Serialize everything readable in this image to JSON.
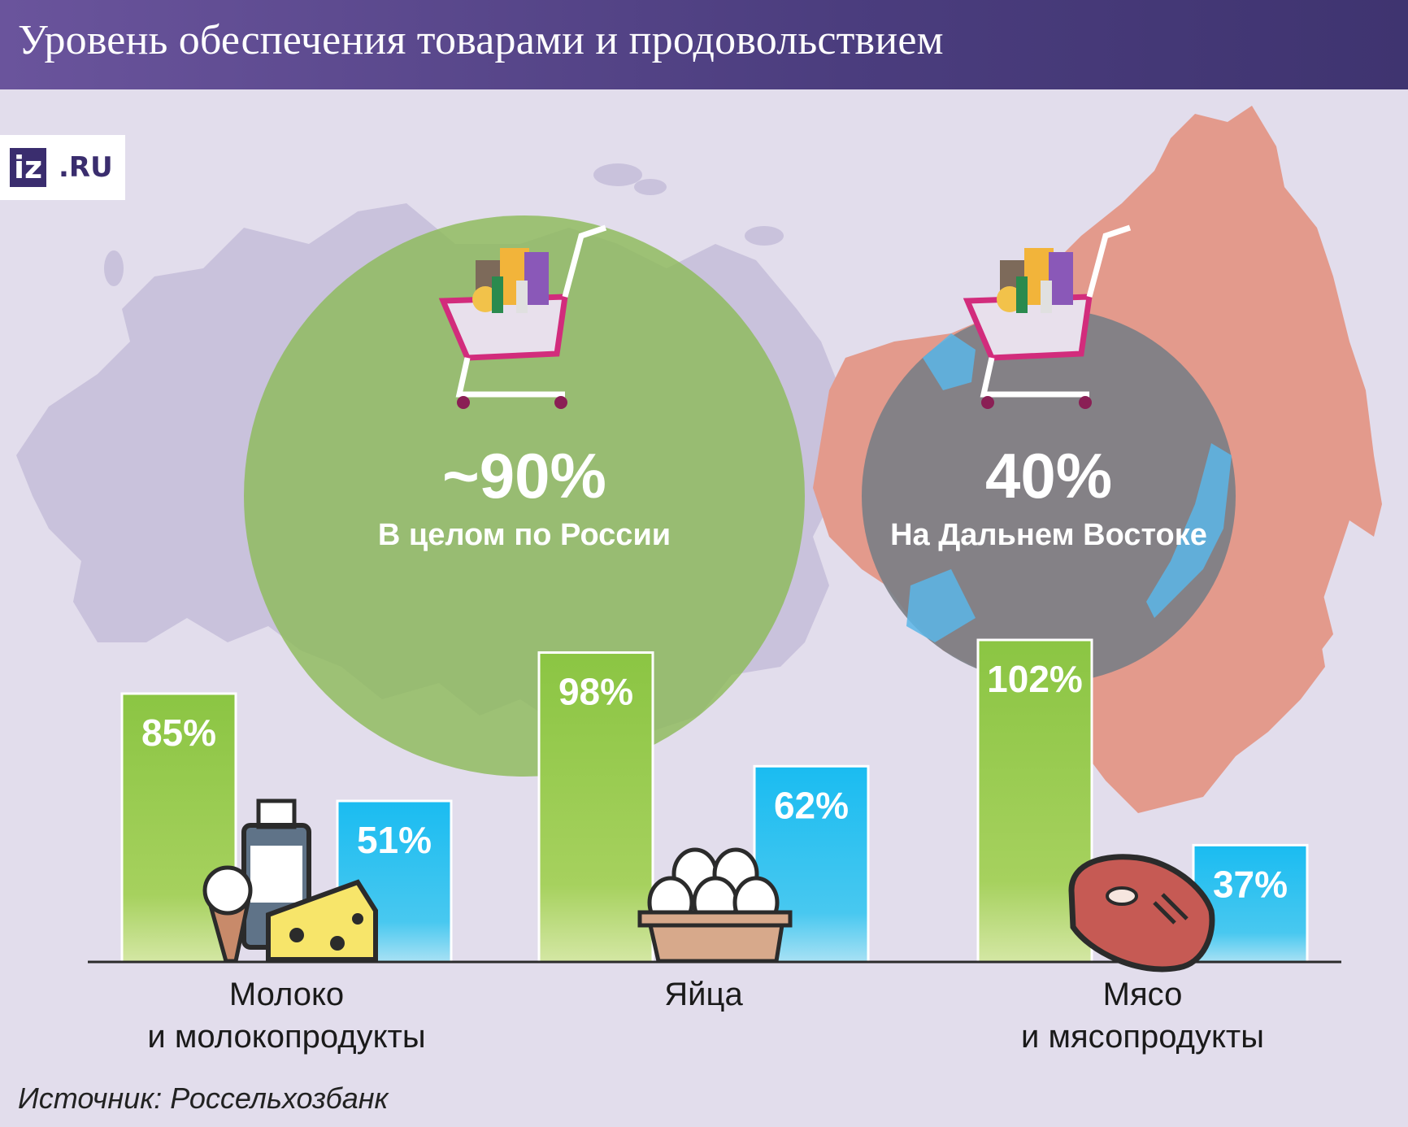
{
  "header": {
    "title": "Уровень обеспечения товарами и продовольствием"
  },
  "logo": {
    "iz": "iz",
    "ru": ".RU"
  },
  "source": "Источник: Россельхозбанк",
  "colors": {
    "russia": "#8bc34a",
    "far_east": "#1ebef0",
    "map_base": "#c9c2dc",
    "map_far_east": "#e39a8c",
    "header": "#4b3d7e"
  },
  "icons": [
    "shopping-cart-icon",
    "milk-bottle-icon",
    "ice-cream-icon",
    "cheese-icon",
    "egg-tray-icon",
    "steak-icon"
  ],
  "chart_data": {
    "type": "bar",
    "title": "Уровень обеспечения товарами и продовольствием",
    "summary": [
      {
        "value": "~90%",
        "label": "В целом по России",
        "number": 90
      },
      {
        "value": "40%",
        "label": "На Дальнем Востоке",
        "number": 40
      }
    ],
    "categories": [
      [
        "Молоко",
        "и молокопродукты"
      ],
      [
        "Яйца"
      ],
      [
        "Мясо",
        "и мясопродукты"
      ]
    ],
    "series": [
      {
        "values": [
          85,
          98,
          102
        ],
        "labels": [
          "85%",
          "98%",
          "102%"
        ]
      },
      {
        "values": [
          51,
          62,
          37
        ],
        "labels": [
          "51%",
          "62%",
          "37%"
        ]
      }
    ],
    "ylim": [
      0,
      102
    ]
  }
}
